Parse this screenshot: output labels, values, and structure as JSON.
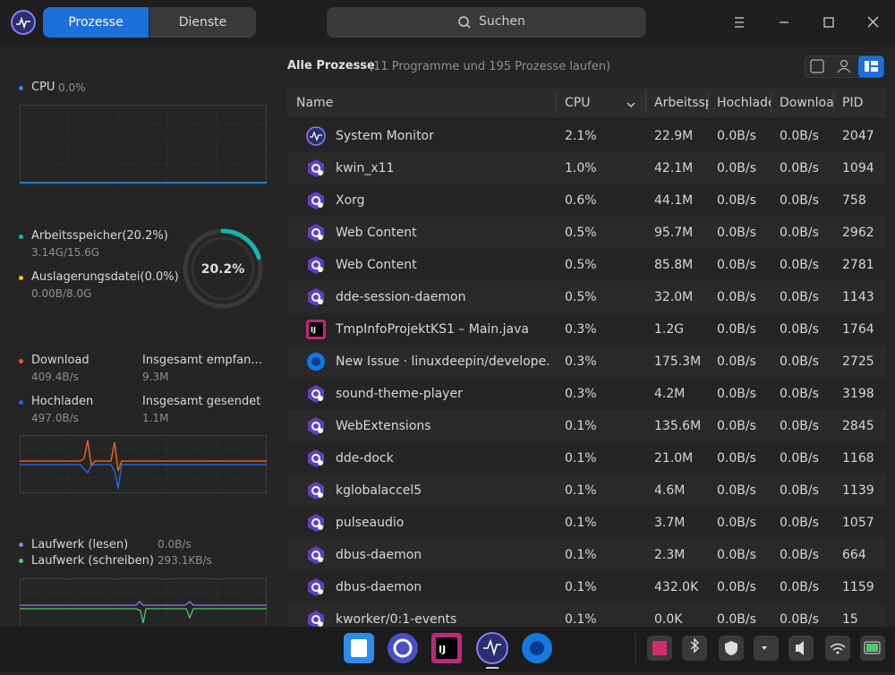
{
  "header": {
    "tabs": [
      "Prozesse",
      "Dienste"
    ],
    "search": "Suchen"
  },
  "sidebar": {
    "cpu": {
      "label": "CPU",
      "value": "0.0%"
    },
    "memory": {
      "label": "Arbeitsspeicher(20.2%)",
      "value": "3.14G/15.6G",
      "swap_label": "Auslagerungsdatei(0.0%)",
      "swap_value": "0.00B/8.0G",
      "ring": "20.2%"
    },
    "network": {
      "download_label": "Download",
      "download_value": "409.4B/s",
      "received_label": "Insgesamt empfan...",
      "received_value": "9.3M",
      "upload_label": "Hochladen",
      "upload_value": "497.0B/s",
      "sent_label": "Insgesamt gesendet",
      "sent_value": "1.1M"
    },
    "disk": {
      "read_label": "Laufwerk (lesen)",
      "read_value": "0.0B/s",
      "write_label": "Laufwerk (schreiben)",
      "write_value": "293.1KB/s"
    }
  },
  "main": {
    "title": "Alle Prozesse",
    "subtitle": "(11 Programme und 195 Prozesse laufen)",
    "table": {
      "columns": [
        "Name",
        "CPU",
        "Arbeitssp",
        "Hochlade",
        "Downloa",
        "PID"
      ],
      "rows": [
        [
          "System Monitor",
          "2.1%",
          "22.9M",
          "0.0B/s",
          "0.0B/s",
          "2047"
        ],
        [
          "kwin_x11",
          "1.0%",
          "42.1M",
          "0.0B/s",
          "0.0B/s",
          "1094"
        ],
        [
          "Xorg",
          "0.6%",
          "44.1M",
          "0.0B/s",
          "0.0B/s",
          "758"
        ],
        [
          "Web Content",
          "0.5%",
          "95.7M",
          "0.0B/s",
          "0.0B/s",
          "2962"
        ],
        [
          "Web Content",
          "0.5%",
          "85.8M",
          "0.0B/s",
          "0.0B/s",
          "2781"
        ],
        [
          "dde-session-daemon",
          "0.5%",
          "32.0M",
          "0.0B/s",
          "0.0B/s",
          "1143"
        ],
        [
          "TmpInfoProjektKS1 – Main.java",
          "0.3%",
          "1.2G",
          "0.0B/s",
          "0.0B/s",
          "1764"
        ],
        [
          "New Issue · linuxdeepin/develope...",
          "0.3%",
          "175.3M",
          "0.0B/s",
          "0.0B/s",
          "2725"
        ],
        [
          "sound-theme-player",
          "0.3%",
          "4.2M",
          "0.0B/s",
          "0.0B/s",
          "3198"
        ],
        [
          "WebExtensions",
          "0.1%",
          "135.6M",
          "0.0B/s",
          "0.0B/s",
          "2845"
        ],
        [
          "dde-dock",
          "0.1%",
          "21.0M",
          "0.0B/s",
          "0.0B/s",
          "1168"
        ],
        [
          "kglobalaccel5",
          "0.1%",
          "4.6M",
          "0.0B/s",
          "0.0B/s",
          "1139"
        ],
        [
          "pulseaudio",
          "0.1%",
          "3.7M",
          "0.0B/s",
          "0.0B/s",
          "1057"
        ],
        [
          "dbus-daemon",
          "0.1%",
          "2.3M",
          "0.0B/s",
          "0.0B/s",
          "664"
        ],
        [
          "dbus-daemon",
          "0.1%",
          "432.0K",
          "0.0B/s",
          "0.0B/s",
          "1159"
        ],
        [
          "kworker/0:1-events",
          "0.1%",
          "0.0K",
          "0.0B/s",
          "0.0B/s",
          "15"
        ]
      ]
    }
  }
}
